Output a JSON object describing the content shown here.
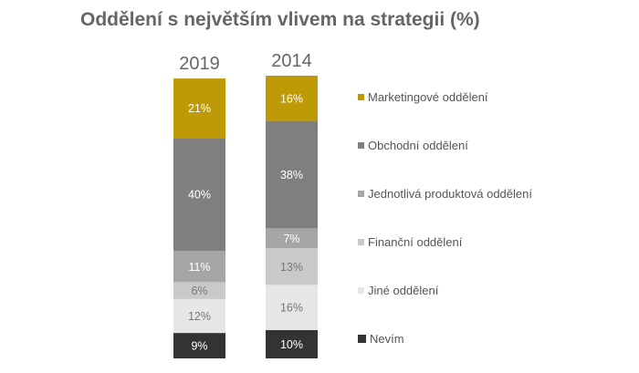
{
  "chart_data": {
    "type": "stacked-bar",
    "title": "Oddělení s největším vlivem na strategii (%)",
    "categories": [
      "2019",
      "2014"
    ],
    "series": [
      {
        "name": "Nevím",
        "values": [
          9,
          10
        ],
        "color": "#333333",
        "label_color": "#ffffff"
      },
      {
        "name": "Jiné oddělení",
        "values": [
          12,
          16
        ],
        "color": "#E6E6E6",
        "label_color": "#777777"
      },
      {
        "name": "Finanční oddělení",
        "values": [
          6,
          13
        ],
        "color": "#C9C9C9",
        "label_color": "#777777"
      },
      {
        "name": "Jednotlivá produktová oddělení",
        "values": [
          11,
          7
        ],
        "color": "#A6A6A6",
        "label_color": "#ffffff"
      },
      {
        "name": "Obchodní oddělení",
        "values": [
          40,
          38
        ],
        "color": "#7F7F7F",
        "label_color": "#ffffff"
      },
      {
        "name": "Marketingové oddělení",
        "values": [
          21,
          16
        ],
        "color": "#BF9A07",
        "label_color": "#ffffff"
      }
    ],
    "value_suffix": "%",
    "legend_position": "right",
    "grid": false
  }
}
